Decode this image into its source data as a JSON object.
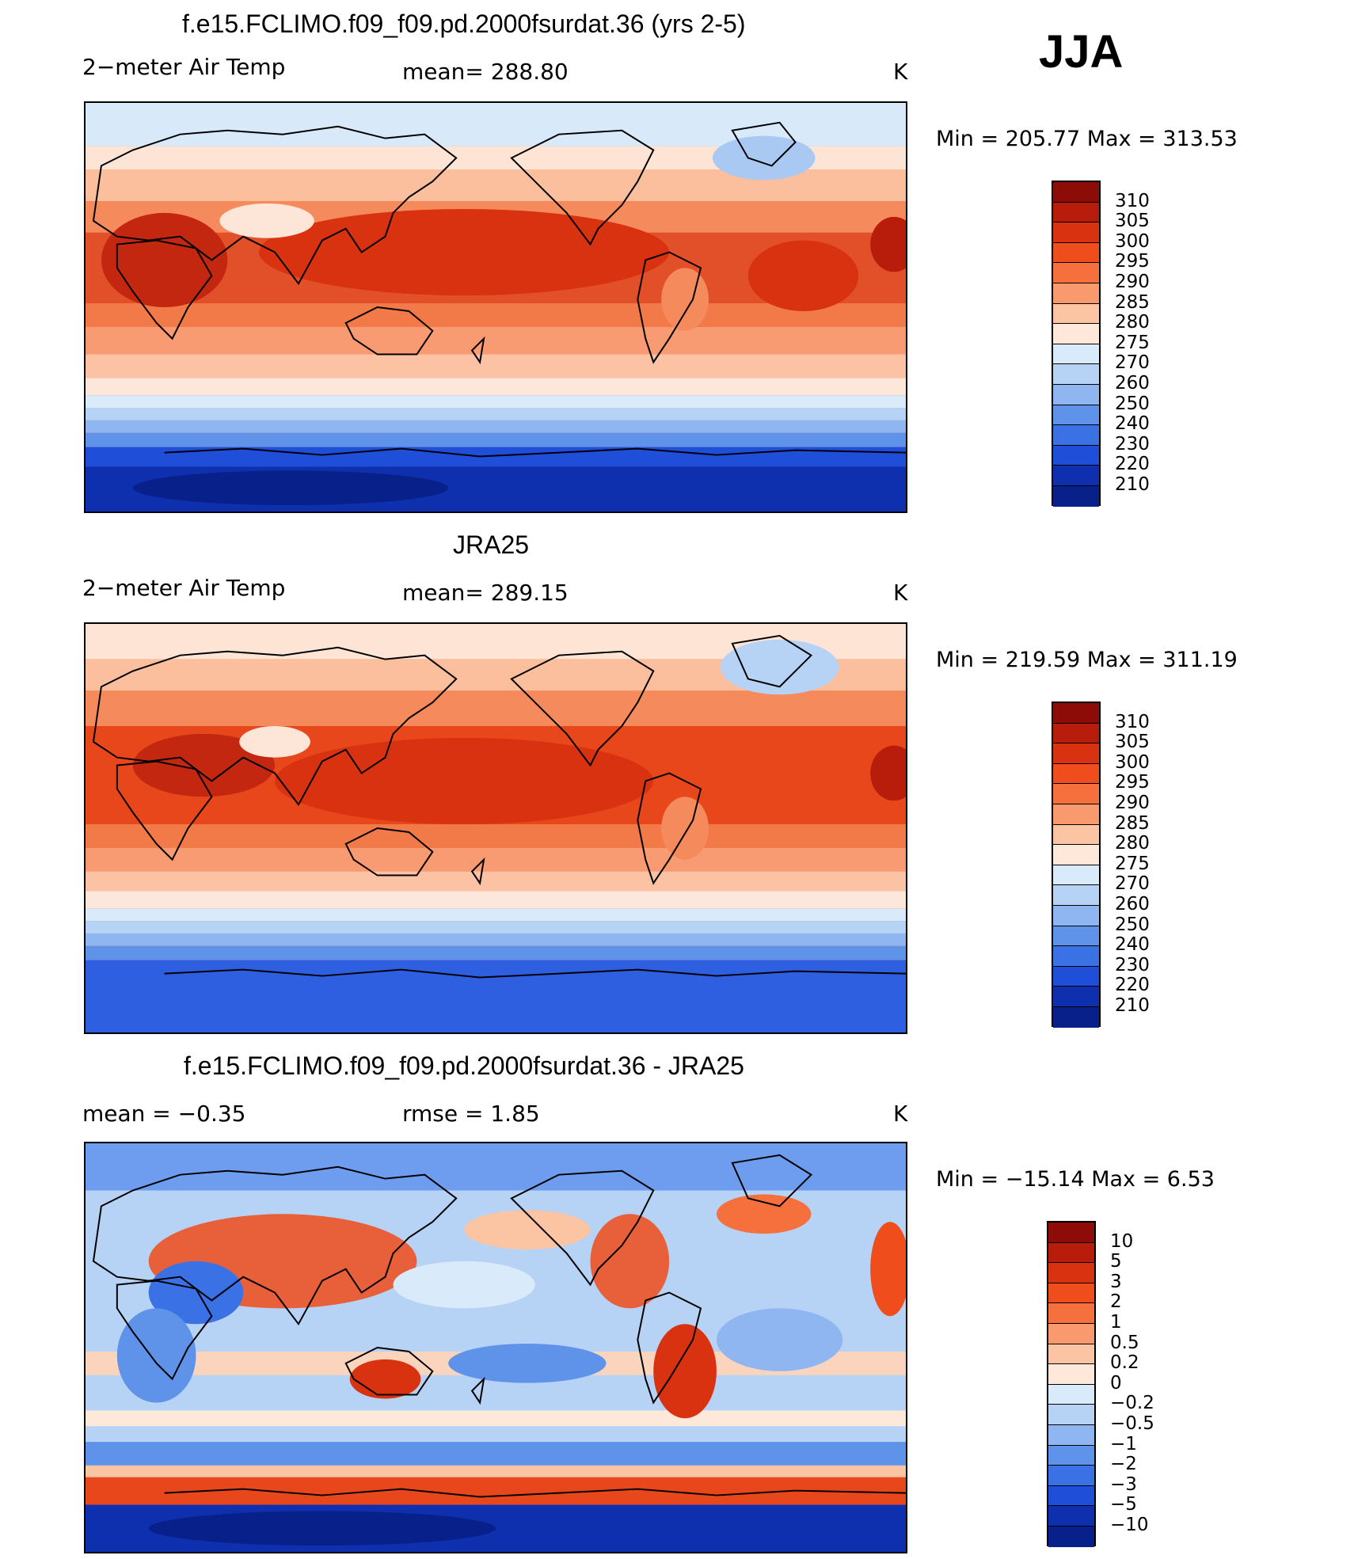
{
  "season": "JJA",
  "panels": [
    {
      "title": "f.e15.FCLIMO.f09_f09.pd.2000fsurdat.36 (yrs 2-5)",
      "left_label": "2−meter Air Temp",
      "center_label": "mean=  288.80",
      "right_label": "K",
      "minmax": "Min  =  205.77  Max  =  313.53",
      "colorbar": {
        "labels": [
          "310",
          "305",
          "300",
          "295",
          "290",
          "285",
          "280",
          "275",
          "270",
          "260",
          "250",
          "240",
          "230",
          "220",
          "210"
        ],
        "colors": [
          "#8e0c08",
          "#b81d0c",
          "#d93210",
          "#f04d1c",
          "#f5703c",
          "#f99a6e",
          "#fbc4a3",
          "#fde8da",
          "#d9eafa",
          "#b6d2f5",
          "#8fb6f0",
          "#5f93ea",
          "#3a72e6",
          "#1f4fd8",
          "#0f30ae",
          "#08208a"
        ]
      }
    },
    {
      "title": "JRA25",
      "left_label": "2−meter Air Temp",
      "center_label": "mean=  289.15",
      "right_label": "K",
      "minmax": "Min  =  219.59  Max  =  311.19",
      "colorbar": {
        "labels": [
          "310",
          "305",
          "300",
          "295",
          "290",
          "285",
          "280",
          "275",
          "270",
          "260",
          "250",
          "240",
          "230",
          "220",
          "210"
        ],
        "colors": [
          "#8e0c08",
          "#b81d0c",
          "#d93210",
          "#f04d1c",
          "#f5703c",
          "#f99a6e",
          "#fbc4a3",
          "#fde8da",
          "#d9eafa",
          "#b6d2f5",
          "#8fb6f0",
          "#5f93ea",
          "#3a72e6",
          "#1f4fd8",
          "#0f30ae",
          "#08208a"
        ]
      }
    },
    {
      "title": "f.e15.FCLIMO.f09_f09.pd.2000fsurdat.36 - JRA25",
      "left_label": "mean  =    −0.35",
      "center_label": "rmse  =     1.85",
      "right_label": "K",
      "minmax": "Min  =  −15.14  Max  =      6.53",
      "colorbar": {
        "labels": [
          "10",
          "5",
          "3",
          "2",
          "1",
          "0.5",
          "0.2",
          "0",
          "−0.2",
          "−0.5",
          "−1",
          "−2",
          "−3",
          "−5",
          "−10"
        ],
        "colors": [
          "#8e0c08",
          "#b81d0c",
          "#d93210",
          "#f04d1c",
          "#f5703c",
          "#f99a6e",
          "#fbc4a3",
          "#fde8da",
          "#d9eafa",
          "#b6d2f5",
          "#8fb6f0",
          "#5f93ea",
          "#3a72e6",
          "#1f4fd8",
          "#0f30ae",
          "#08208a"
        ]
      }
    }
  ]
}
